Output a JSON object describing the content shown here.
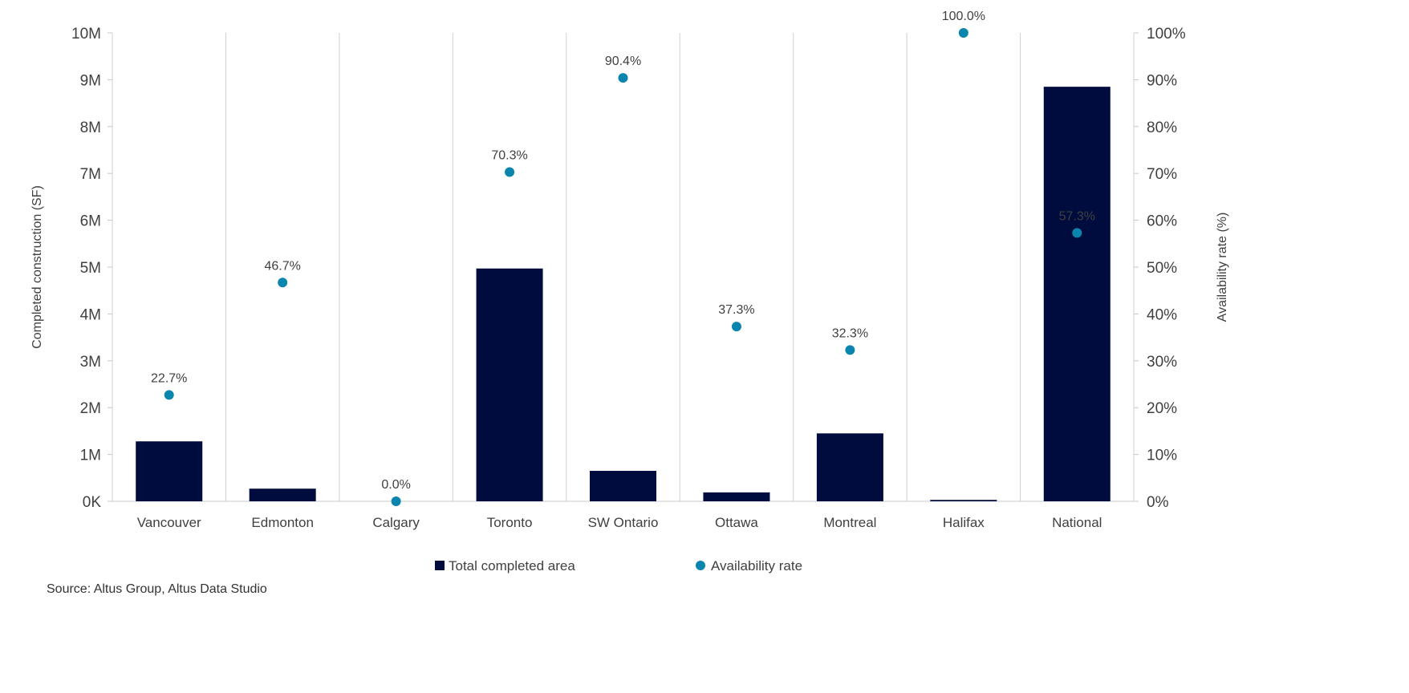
{
  "chart_data": {
    "type": "bar+scatter",
    "categories": [
      "Vancouver",
      "Edmonton",
      "Calgary",
      "Toronto",
      "SW Ontario",
      "Ottawa",
      "Montreal",
      "Halifax",
      "National"
    ],
    "series": [
      {
        "name": "Total completed area",
        "type": "bar",
        "axis": "left",
        "values": [
          1280000,
          270000,
          0,
          4970000,
          650000,
          190000,
          1450000,
          30000,
          8850000
        ]
      },
      {
        "name": "Availability rate",
        "type": "scatter",
        "axis": "right",
        "values": [
          22.7,
          46.7,
          0.0,
          70.3,
          90.4,
          37.3,
          32.3,
          100.0,
          57.3
        ],
        "labels": [
          "22.7%",
          "46.7%",
          "0.0%",
          "70.3%",
          "90.4%",
          "37.3%",
          "32.3%",
          "100.0%",
          "57.3%"
        ]
      }
    ],
    "ylabel": "Completed construction (SF)",
    "y2label": "Availability rate (%)",
    "ylim": [
      0,
      10000000
    ],
    "y2lim": [
      0,
      100
    ],
    "yticks": [
      "0K",
      "1M",
      "2M",
      "3M",
      "4M",
      "5M",
      "6M",
      "7M",
      "8M",
      "9M",
      "10M"
    ],
    "y2ticks": [
      "0%",
      "10%",
      "20%",
      "30%",
      "40%",
      "50%",
      "60%",
      "70%",
      "80%",
      "90%",
      "100%"
    ],
    "legend_position": "bottom",
    "grid": "vertical category separators",
    "colors": {
      "bar": "#000c3d",
      "dot": "#0a85ad"
    }
  },
  "source": "Source: Altus Group, Altus Data Studio"
}
